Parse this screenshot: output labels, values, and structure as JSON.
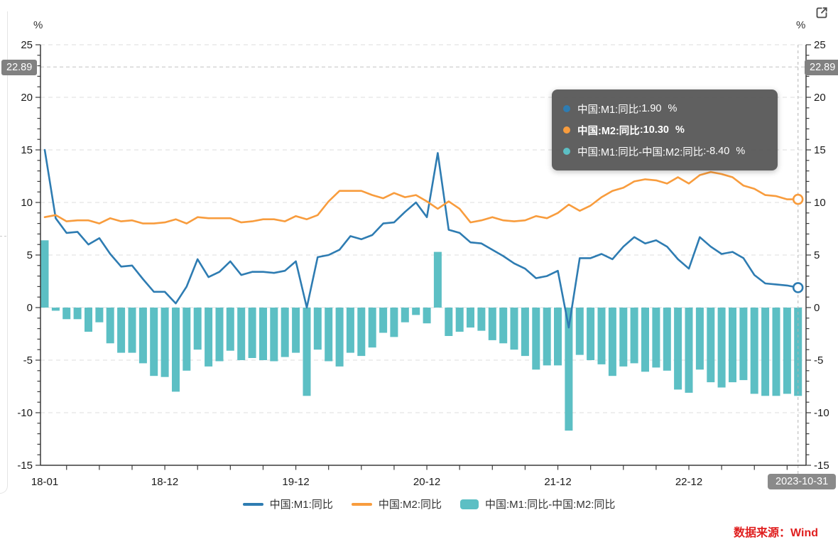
{
  "unit_left": "%",
  "unit_right": "%",
  "axis_pointer": {
    "y_value": 22.89,
    "y_badge": "22.89",
    "x_badge": "2023-10-31"
  },
  "tooltip": {
    "separator": ": ",
    "items": [
      {
        "label": "中国:M1:同比",
        "value": "1.90",
        "unit": "%",
        "color": "#2e7cb2"
      },
      {
        "label": "中国:M2:同比",
        "value": "10.30",
        "unit": "%",
        "color": "#f89c3d"
      },
      {
        "label": "中国:M1:同比-中国:M2:同比",
        "value": "-8.40",
        "unit": "%",
        "color": "#5cbfc4"
      }
    ]
  },
  "legend": {
    "items": [
      {
        "name": "中国:M1:同比",
        "type": "line",
        "color": "#2e7cb2"
      },
      {
        "name": "中国:M2:同比",
        "type": "line",
        "color": "#f89c3d"
      },
      {
        "name": "中国:M1:同比-中国:M2:同比",
        "type": "bar",
        "color": "#5cbfc4"
      }
    ]
  },
  "source_note": "数据来源：Wind",
  "chart_data": {
    "type": "mixed",
    "title": "",
    "grid": "dashed-horizontal",
    "legend_position": "bottom-center",
    "y_axis": {
      "unit": "%",
      "min": -15,
      "max": 25,
      "major_ticks": [
        25,
        20,
        15,
        10,
        5,
        0,
        -5,
        -10,
        -15
      ],
      "minor_tick_interval": 1
    },
    "x_axis": {
      "tick_every_months": 3,
      "first_tick_month_index": 2,
      "labels": [
        {
          "index": 0,
          "text": "18-01"
        },
        {
          "index": 11,
          "text": "18-12"
        },
        {
          "index": 23,
          "text": "19-12"
        },
        {
          "index": 35,
          "text": "20-12"
        },
        {
          "index": 47,
          "text": "21-12"
        },
        {
          "index": 59,
          "text": "22-12"
        }
      ]
    },
    "categories": [
      "2018-01",
      "2018-02",
      "2018-03",
      "2018-04",
      "2018-05",
      "2018-06",
      "2018-07",
      "2018-08",
      "2018-09",
      "2018-10",
      "2018-11",
      "2018-12",
      "2019-01",
      "2019-02",
      "2019-03",
      "2019-04",
      "2019-05",
      "2019-06",
      "2019-07",
      "2019-08",
      "2019-09",
      "2019-10",
      "2019-11",
      "2019-12",
      "2020-01",
      "2020-02",
      "2020-03",
      "2020-04",
      "2020-05",
      "2020-06",
      "2020-07",
      "2020-08",
      "2020-09",
      "2020-10",
      "2020-11",
      "2020-12",
      "2021-01",
      "2021-02",
      "2021-03",
      "2021-04",
      "2021-05",
      "2021-06",
      "2021-07",
      "2021-08",
      "2021-09",
      "2021-10",
      "2021-11",
      "2021-12",
      "2022-01",
      "2022-02",
      "2022-03",
      "2022-04",
      "2022-05",
      "2022-06",
      "2022-07",
      "2022-08",
      "2022-09",
      "2022-10",
      "2022-11",
      "2022-12",
      "2023-01",
      "2023-02",
      "2023-03",
      "2023-04",
      "2023-05",
      "2023-06",
      "2023-07",
      "2023-08",
      "2023-09",
      "2023-10"
    ],
    "series": [
      {
        "name": "中国:M1:同比",
        "type": "line",
        "color": "#2e7cb2",
        "end_marker": true,
        "values": [
          15.0,
          8.5,
          7.1,
          7.2,
          6.0,
          6.6,
          5.1,
          3.9,
          4.0,
          2.7,
          1.5,
          1.5,
          0.4,
          2.0,
          4.6,
          2.9,
          3.4,
          4.4,
          3.1,
          3.4,
          3.4,
          3.3,
          3.5,
          4.4,
          0.0,
          4.8,
          5.0,
          5.5,
          6.8,
          6.5,
          6.9,
          8.0,
          8.1,
          9.1,
          10.0,
          8.6,
          14.7,
          7.4,
          7.1,
          6.2,
          6.1,
          5.5,
          4.9,
          4.2,
          3.7,
          2.8,
          3.0,
          3.5,
          -1.9,
          4.7,
          4.7,
          5.1,
          4.6,
          5.8,
          6.7,
          6.1,
          6.4,
          5.8,
          4.6,
          3.7,
          6.7,
          5.8,
          5.1,
          5.3,
          4.7,
          3.1,
          2.3,
          2.2,
          2.1,
          1.9
        ]
      },
      {
        "name": "中国:M2:同比",
        "type": "line",
        "color": "#f89c3d",
        "end_marker": true,
        "values": [
          8.6,
          8.8,
          8.2,
          8.3,
          8.3,
          8.0,
          8.5,
          8.2,
          8.3,
          8.0,
          8.0,
          8.1,
          8.4,
          8.0,
          8.6,
          8.5,
          8.5,
          8.5,
          8.1,
          8.2,
          8.4,
          8.4,
          8.2,
          8.7,
          8.4,
          8.8,
          10.1,
          11.1,
          11.1,
          11.1,
          10.7,
          10.4,
          10.9,
          10.5,
          10.7,
          10.1,
          9.4,
          10.1,
          9.4,
          8.1,
          8.3,
          8.6,
          8.3,
          8.2,
          8.3,
          8.7,
          8.5,
          9.0,
          9.8,
          9.2,
          9.7,
          10.5,
          11.1,
          11.4,
          12.0,
          12.2,
          12.1,
          11.8,
          12.4,
          11.8,
          12.6,
          12.9,
          12.7,
          12.4,
          11.6,
          11.3,
          10.7,
          10.6,
          10.3,
          10.3
        ]
      },
      {
        "name": "中国:M1:同比-中国:M2:同比",
        "type": "bar",
        "color": "#5cbfc4",
        "values": [
          6.4,
          -0.3,
          -1.1,
          -1.1,
          -2.3,
          -1.4,
          -3.4,
          -4.3,
          -4.3,
          -5.3,
          -6.5,
          -6.6,
          -8.0,
          -6.0,
          -4.0,
          -5.6,
          -5.1,
          -4.1,
          -5.0,
          -4.8,
          -5.0,
          -5.1,
          -4.7,
          -4.3,
          -8.4,
          -4.0,
          -5.1,
          -5.6,
          -4.3,
          -4.6,
          -3.8,
          -2.4,
          -2.8,
          -1.4,
          -0.7,
          -1.5,
          5.3,
          -2.7,
          -2.3,
          -1.9,
          -2.2,
          -3.1,
          -3.4,
          -4.0,
          -4.6,
          -5.9,
          -5.5,
          -5.5,
          -11.7,
          -4.5,
          -5.0,
          -5.4,
          -6.5,
          -5.6,
          -5.3,
          -6.1,
          -5.7,
          -6.0,
          -7.8,
          -8.1,
          -5.9,
          -7.1,
          -7.6,
          -7.1,
          -6.9,
          -8.2,
          -8.4,
          -8.4,
          -8.2,
          -8.4
        ]
      }
    ],
    "crosshair": {
      "x_category": "2023-10-31",
      "y_value": 22.89
    }
  }
}
